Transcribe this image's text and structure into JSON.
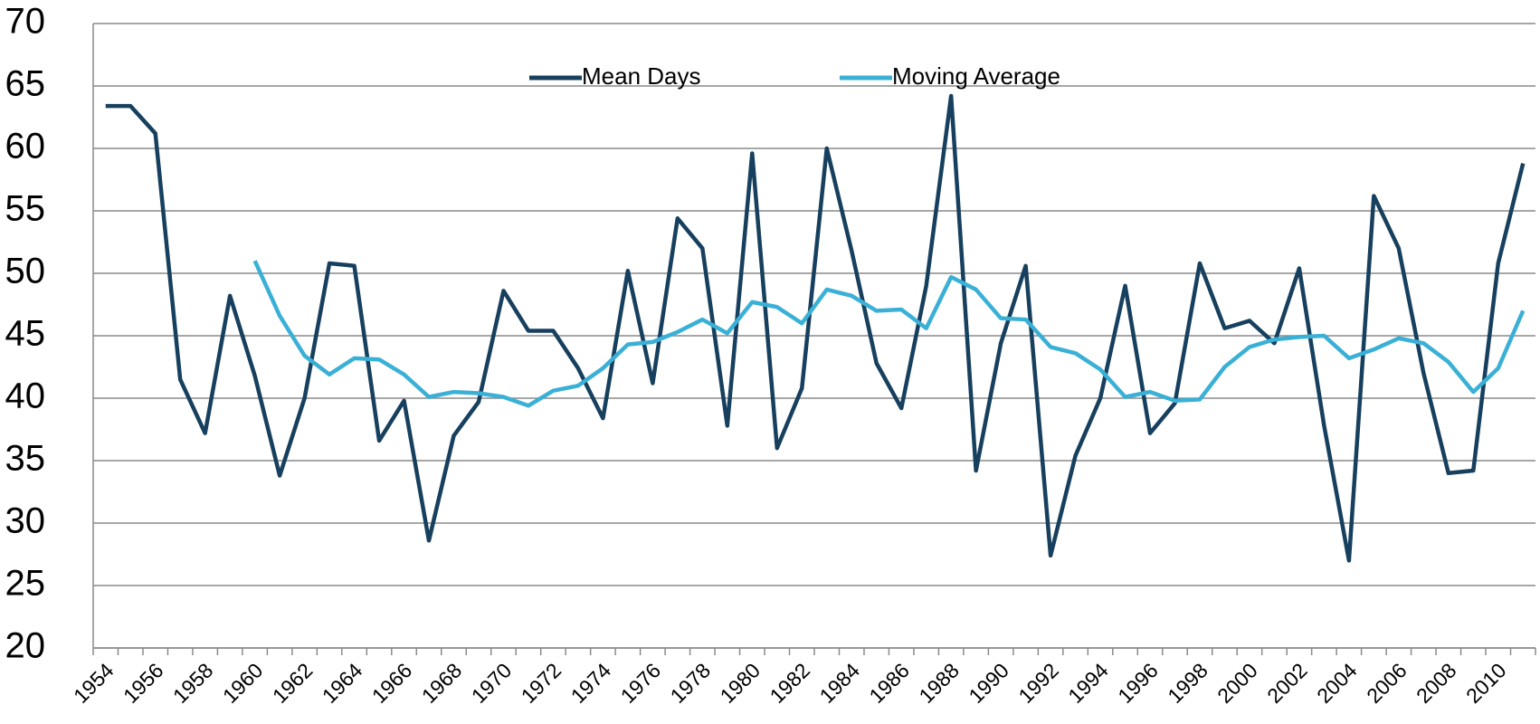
{
  "chart_data": {
    "type": "line",
    "categories": [
      "1954",
      null,
      "1956",
      null,
      "1958",
      null,
      "1960",
      null,
      "1962",
      null,
      "1964",
      null,
      "1966",
      null,
      "1968",
      null,
      "1970",
      null,
      "1972",
      null,
      "1974",
      null,
      "1976",
      null,
      "1978",
      null,
      "1980",
      null,
      "1982",
      null,
      "1984",
      null,
      "1986",
      null,
      "1988",
      null,
      "1990",
      null,
      "1992",
      null,
      "1994",
      null,
      "1996",
      null,
      "1998",
      null,
      "2000",
      null,
      "2002",
      null,
      "2004",
      null,
      "2006",
      null,
      "2008",
      null,
      "2010",
      null
    ],
    "series": [
      {
        "name": "Mean Days",
        "color": "#17405e",
        "values": [
          63.4,
          63.4,
          61.2,
          41.5,
          37.2,
          48.2,
          41.8,
          33.8,
          40,
          50.8,
          50.6,
          36.6,
          39.8,
          28.6,
          37,
          39.7,
          48.6,
          45.4,
          45.4,
          42.4,
          38.4,
          50.2,
          41.2,
          54.4,
          52,
          37.8,
          59.6,
          36,
          40.8,
          60,
          51.8,
          42.8,
          39.2,
          49,
          64.2,
          34.2,
          44.4,
          50.6,
          27.4,
          35.4,
          40,
          49,
          37.2,
          39.6,
          50.8,
          45.6,
          46.2,
          44.4,
          50.4,
          37.8,
          27,
          56.2,
          52,
          42,
          34,
          34.2,
          50.8,
          58.8
        ]
      },
      {
        "name": "Moving Average",
        "color": "#3bb0d6",
        "values": [
          null,
          null,
          null,
          null,
          null,
          null,
          51,
          46.6,
          43.4,
          41.9,
          43.2,
          43.1,
          41.9,
          40.1,
          40.5,
          40.4,
          40.1,
          39.4,
          40.6,
          41,
          42.4,
          44.3,
          44.5,
          45.3,
          46.3,
          45.2,
          47.7,
          47.3,
          46,
          48.7,
          48.2,
          47,
          47.1,
          45.6,
          49.7,
          48.7,
          46.4,
          46.3,
          44.1,
          43.6,
          42.3,
          40.1,
          40.5,
          39.8,
          39.9,
          42.5,
          44.1,
          44.7,
          44.9,
          45,
          43.2,
          43.9,
          44.8,
          44.4,
          42.9,
          40.5,
          42.4,
          47
        ]
      }
    ],
    "ylim": [
      20,
      70
    ],
    "yticks": [
      20,
      25,
      30,
      35,
      40,
      45,
      50,
      55,
      60,
      65,
      70
    ],
    "grid": true,
    "legend": "top"
  }
}
